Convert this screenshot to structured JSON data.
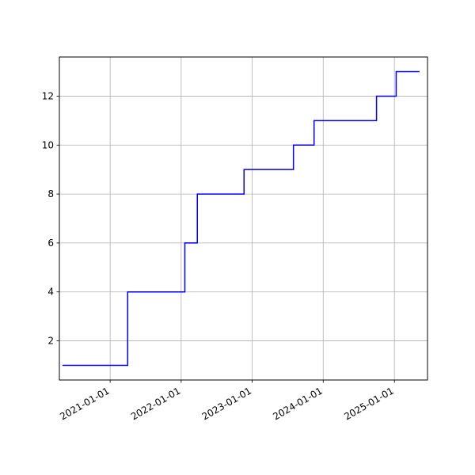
{
  "chart_data": {
    "type": "line",
    "drawstyle": "steps-post",
    "title": "",
    "xlabel": "",
    "ylabel": "",
    "x_axis_kind": "date",
    "xlim": [
      "2020-04-15",
      "2025-06-20"
    ],
    "ylim": [
      0.4,
      13.6
    ],
    "x_ticks": [
      "2021-01-01",
      "2022-01-01",
      "2023-01-01",
      "2024-01-01",
      "2025-01-01"
    ],
    "y_ticks": [
      2,
      4,
      6,
      8,
      10,
      12
    ],
    "grid": true,
    "legend": "none",
    "series": [
      {
        "color": "#0000ff",
        "points": [
          {
            "x": "2020-05-01",
            "y": 1
          },
          {
            "x": "2021-04-01",
            "y": 4
          },
          {
            "x": "2022-01-20",
            "y": 6
          },
          {
            "x": "2022-03-25",
            "y": 8
          },
          {
            "x": "2022-11-20",
            "y": 9
          },
          {
            "x": "2023-08-01",
            "y": 10
          },
          {
            "x": "2023-11-15",
            "y": 11
          },
          {
            "x": "2024-10-01",
            "y": 12
          },
          {
            "x": "2025-01-10",
            "y": 13
          },
          {
            "x": "2025-05-10",
            "y": 13
          }
        ]
      }
    ]
  }
}
